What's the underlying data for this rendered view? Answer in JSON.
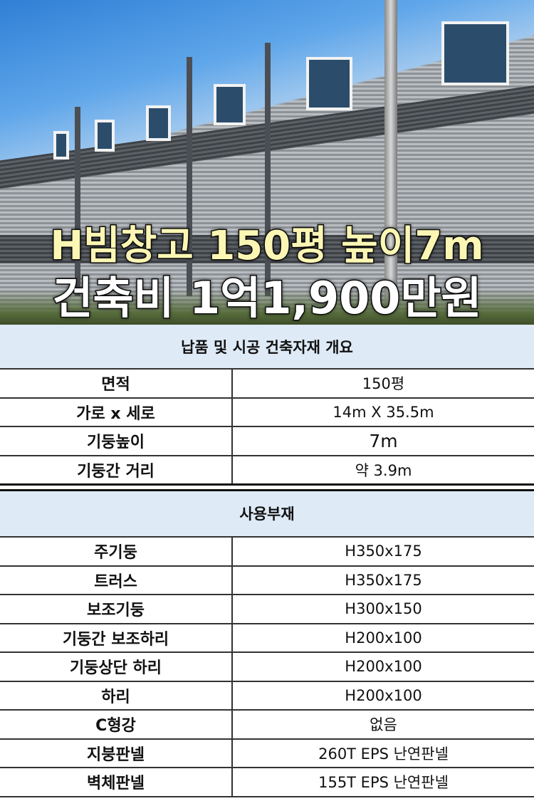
{
  "banner": {
    "line1": "H빔창고 150평 높이7m",
    "line2": "건축비 1억1,900만원"
  },
  "overview": {
    "title": "납품 및 시공 건축자재 개요",
    "rows": [
      {
        "label": "면적",
        "value": "150평"
      },
      {
        "label": "가로 x 세로",
        "value": "14m X 35.5m"
      },
      {
        "label": "기둥높이",
        "value": "7m"
      },
      {
        "label": "기둥간 거리",
        "value": "약 3.9m"
      }
    ]
  },
  "materials": {
    "title": "사용부재",
    "rows": [
      {
        "label": "주기둥",
        "value": "H350x175"
      },
      {
        "label": "트러스",
        "value": "H350x175"
      },
      {
        "label": "보조기둥",
        "value": "H300x150"
      },
      {
        "label": "기둥간 보조하리",
        "value": "H200x100"
      },
      {
        "label": "기둥상단 하리",
        "value": "H200x100"
      },
      {
        "label": "하리",
        "value": "H200x100"
      },
      {
        "label": "C형강",
        "value": "없음"
      },
      {
        "label": "지붕판넬",
        "value": "260T EPS 난연판넬"
      },
      {
        "label": "벽체판넬",
        "value": "155T EPS 난연판넬"
      }
    ]
  },
  "colors": {
    "header_bg": "#deeaf6",
    "title1": "#fbf6b4",
    "title2": "#ffffff"
  }
}
